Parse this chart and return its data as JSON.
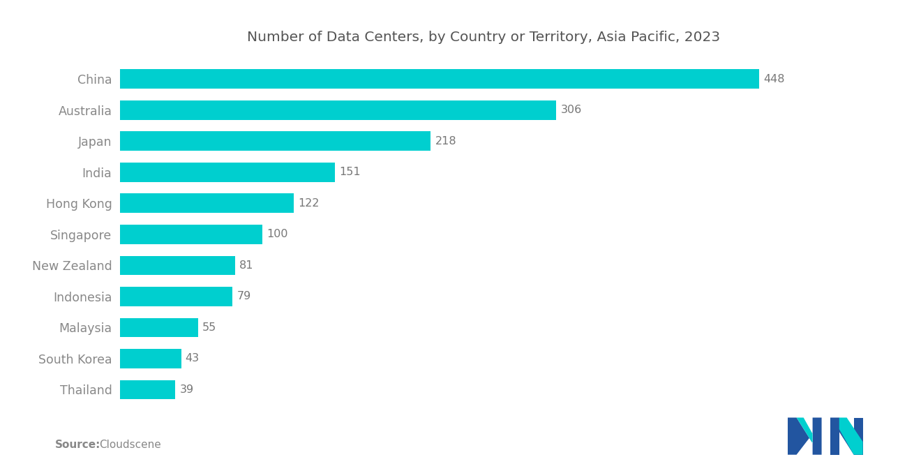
{
  "title": "Number of Data Centers, by Country or Territory, Asia Pacific, 2023",
  "source_label": "Source:",
  "source_text": "Cloudscene",
  "categories": [
    "Thailand",
    "South Korea",
    "Malaysia",
    "Indonesia",
    "New Zealand",
    "Singapore",
    "Hong Kong",
    "India",
    "Japan",
    "Australia",
    "China"
  ],
  "values": [
    39,
    43,
    55,
    79,
    81,
    100,
    122,
    151,
    218,
    306,
    448
  ],
  "bar_color": "#00CFCF",
  "label_color": "#888888",
  "title_color": "#555555",
  "background_color": "#ffffff",
  "value_label_color": "#777777",
  "xlim": [
    0,
    510
  ],
  "title_fontsize": 14.5,
  "label_fontsize": 12.5,
  "value_fontsize": 11.5,
  "source_fontsize": 11,
  "bar_height": 0.62,
  "logo_m_color": "#2255a0",
  "logo_n_color": "#00CFCF",
  "logo_m_dark": "#1a3a6e"
}
